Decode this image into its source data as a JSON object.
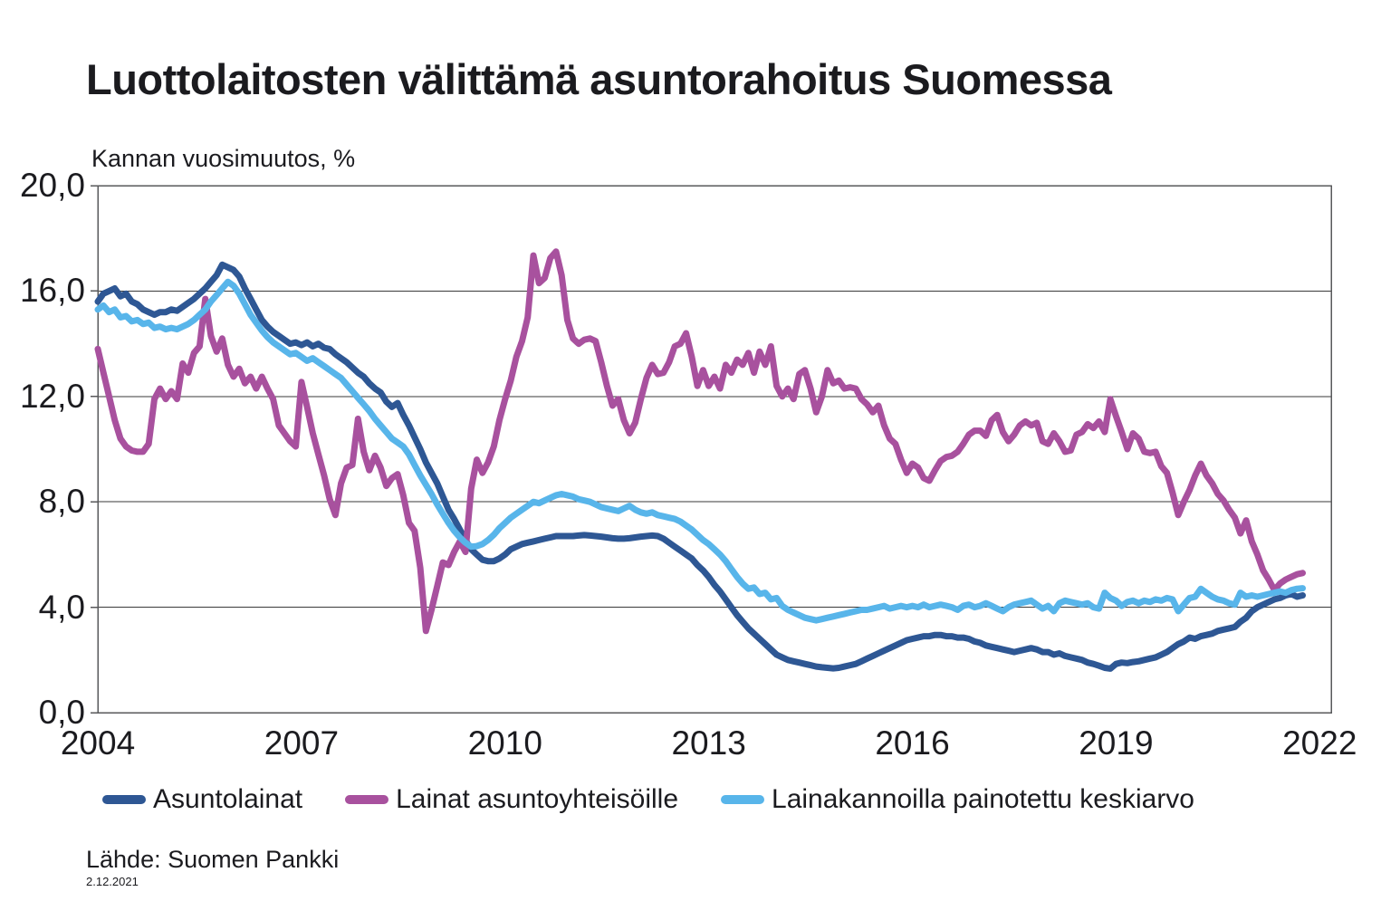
{
  "header": {
    "title": "Luottolaitosten välittämä asuntorahoitus Suomessa",
    "subtitle": "Kannan vuosimuutos, %"
  },
  "footer": {
    "source": "Lähde: Suomen Pankki",
    "date": "2.12.2021"
  },
  "colors": {
    "asuntolainat": "#2E5794",
    "asuntoyhteisot": "#A8519E",
    "keskiarvo": "#58B5EA",
    "grid": "#3a3a3a",
    "frame": "#58595b",
    "text": "#1b1b1f"
  },
  "chart_data": {
    "type": "line",
    "title": "Luottolaitosten välittämä asuntorahoitus Suomessa",
    "subtitle": "Kannan vuosimuutos, %",
    "xlabel": "",
    "ylabel": "Kannan vuosimuutos, %",
    "x_unit": "month",
    "x_start": "2004-01",
    "x_end": "2021-10",
    "frequency": "monthly",
    "start_year": 2004,
    "xlim": [
      2004,
      2022.17
    ],
    "ylim": [
      0,
      20
    ],
    "grid": "horizontal",
    "legend_position": "bottom",
    "ytick_values": [
      20,
      16,
      12,
      8,
      4,
      0
    ],
    "ytick_labels": [
      "20,0",
      "16,0",
      "12,0",
      "8,0",
      "4,0",
      "0,0"
    ],
    "xtick_values": [
      2004,
      2007,
      2010,
      2013,
      2016,
      2019,
      2022
    ],
    "xtick_labels": [
      "2004",
      "2007",
      "2010",
      "2013",
      "2016",
      "2019",
      "2022"
    ],
    "series": [
      {
        "name": "Asuntolainat",
        "color": "#2E5794",
        "values": [
          15.6,
          15.9,
          16.0,
          16.1,
          15.8,
          15.9,
          15.6,
          15.5,
          15.3,
          15.2,
          15.1,
          15.2,
          15.2,
          15.3,
          15.25,
          15.4,
          15.55,
          15.7,
          15.9,
          16.1,
          16.35,
          16.6,
          17.0,
          16.9,
          16.8,
          16.55,
          16.1,
          15.7,
          15.3,
          14.9,
          14.65,
          14.45,
          14.3,
          14.15,
          14.0,
          14.05,
          13.95,
          14.05,
          13.9,
          14.0,
          13.85,
          13.8,
          13.6,
          13.45,
          13.3,
          13.1,
          12.9,
          12.75,
          12.5,
          12.3,
          12.15,
          11.8,
          11.6,
          11.75,
          11.3,
          10.9,
          10.45,
          10.0,
          9.5,
          9.1,
          8.7,
          8.2,
          7.7,
          7.35,
          6.95,
          6.55,
          6.2,
          6.0,
          5.8,
          5.75,
          5.75,
          5.85,
          6.0,
          6.2,
          6.3,
          6.4,
          6.45,
          6.5,
          6.55,
          6.6,
          6.65,
          6.7,
          6.7,
          6.7,
          6.7,
          6.72,
          6.74,
          6.72,
          6.7,
          6.68,
          6.65,
          6.62,
          6.6,
          6.6,
          6.62,
          6.65,
          6.68,
          6.7,
          6.72,
          6.7,
          6.6,
          6.45,
          6.3,
          6.15,
          6.0,
          5.85,
          5.6,
          5.4,
          5.15,
          4.85,
          4.6,
          4.3,
          4.0,
          3.7,
          3.45,
          3.2,
          3.0,
          2.8,
          2.6,
          2.4,
          2.2,
          2.1,
          2.0,
          1.95,
          1.9,
          1.85,
          1.8,
          1.75,
          1.72,
          1.7,
          1.68,
          1.7,
          1.75,
          1.8,
          1.85,
          1.95,
          2.05,
          2.15,
          2.25,
          2.35,
          2.45,
          2.55,
          2.65,
          2.75,
          2.8,
          2.85,
          2.9,
          2.9,
          2.95,
          2.95,
          2.9,
          2.9,
          2.85,
          2.85,
          2.8,
          2.7,
          2.65,
          2.55,
          2.5,
          2.45,
          2.4,
          2.35,
          2.3,
          2.35,
          2.4,
          2.45,
          2.4,
          2.3,
          2.3,
          2.2,
          2.25,
          2.15,
          2.1,
          2.05,
          2.0,
          1.9,
          1.85,
          1.78,
          1.7,
          1.67,
          1.85,
          1.9,
          1.88,
          1.92,
          1.95,
          2.0,
          2.05,
          2.1,
          2.2,
          2.3,
          2.45,
          2.6,
          2.7,
          2.85,
          2.8,
          2.9,
          2.95,
          3.0,
          3.1,
          3.15,
          3.2,
          3.25,
          3.45,
          3.6,
          3.85,
          4.0,
          4.1,
          4.2,
          4.3,
          4.35,
          4.45,
          4.5,
          4.4,
          4.45
        ]
      },
      {
        "name": "Lainat asuntoyhteisöille",
        "color": "#A8519E",
        "values": [
          13.8,
          12.9,
          12.0,
          11.1,
          10.4,
          10.1,
          9.95,
          9.9,
          9.9,
          10.2,
          11.9,
          12.3,
          11.9,
          12.2,
          11.9,
          13.25,
          12.9,
          13.65,
          13.9,
          15.7,
          14.3,
          13.7,
          14.2,
          13.2,
          12.75,
          13.05,
          12.5,
          12.75,
          12.3,
          12.75,
          12.3,
          11.9,
          10.9,
          10.6,
          10.3,
          10.1,
          12.55,
          11.6,
          10.6,
          9.8,
          9.0,
          8.1,
          7.5,
          8.7,
          9.3,
          9.4,
          11.15,
          9.9,
          9.2,
          9.75,
          9.3,
          8.6,
          8.9,
          9.05,
          8.25,
          7.2,
          6.9,
          5.5,
          3.1,
          3.9,
          4.8,
          5.7,
          5.6,
          6.1,
          6.5,
          6.1,
          8.5,
          9.6,
          9.1,
          9.5,
          10.1,
          11.1,
          11.9,
          12.6,
          13.5,
          14.1,
          15.0,
          17.35,
          16.3,
          16.5,
          17.25,
          17.5,
          16.6,
          14.9,
          14.2,
          14.0,
          14.15,
          14.2,
          14.1,
          13.3,
          12.4,
          11.65,
          11.9,
          11.1,
          10.6,
          11.0,
          11.9,
          12.7,
          13.2,
          12.85,
          12.9,
          13.3,
          13.9,
          14.0,
          14.4,
          13.5,
          12.4,
          13.0,
          12.4,
          12.75,
          12.3,
          13.2,
          12.9,
          13.4,
          13.2,
          13.65,
          12.9,
          13.7,
          13.2,
          13.9,
          12.4,
          12.0,
          12.3,
          11.9,
          12.85,
          13.0,
          12.3,
          11.4,
          12.0,
          13.0,
          12.5,
          12.6,
          12.3,
          12.35,
          12.3,
          11.9,
          11.7,
          11.4,
          11.65,
          10.9,
          10.4,
          10.2,
          9.6,
          9.1,
          9.45,
          9.3,
          8.9,
          8.8,
          9.2,
          9.55,
          9.7,
          9.75,
          9.9,
          10.2,
          10.55,
          10.7,
          10.7,
          10.5,
          11.1,
          11.3,
          10.65,
          10.3,
          10.55,
          10.9,
          11.05,
          10.9,
          11.0,
          10.3,
          10.2,
          10.6,
          10.3,
          9.9,
          9.95,
          10.55,
          10.65,
          10.95,
          10.8,
          11.05,
          10.65,
          11.9,
          11.25,
          10.65,
          10.0,
          10.6,
          10.4,
          9.9,
          9.85,
          9.9,
          9.35,
          9.1,
          8.35,
          7.5,
          8.0,
          8.45,
          9.0,
          9.45,
          9.0,
          8.7,
          8.3,
          8.05,
          7.7,
          7.4,
          6.8,
          7.3,
          6.5,
          6.0,
          5.4,
          5.05,
          4.65,
          4.9,
          5.05,
          5.15,
          5.25,
          5.3
        ]
      },
      {
        "name": "Lainakannoilla painotettu keskiarvo",
        "color": "#58B5EA",
        "values": [
          15.3,
          15.45,
          15.2,
          15.3,
          15.0,
          15.05,
          14.85,
          14.9,
          14.75,
          14.8,
          14.6,
          14.65,
          14.55,
          14.6,
          14.55,
          14.65,
          14.75,
          14.9,
          15.1,
          15.3,
          15.6,
          15.85,
          16.1,
          16.35,
          16.2,
          15.9,
          15.5,
          15.1,
          14.8,
          14.5,
          14.25,
          14.05,
          13.9,
          13.75,
          13.6,
          13.65,
          13.5,
          13.35,
          13.45,
          13.3,
          13.15,
          13.0,
          12.85,
          12.7,
          12.45,
          12.2,
          11.95,
          11.7,
          11.45,
          11.15,
          10.9,
          10.65,
          10.4,
          10.25,
          10.1,
          9.8,
          9.4,
          9.0,
          8.65,
          8.3,
          7.9,
          7.55,
          7.2,
          6.9,
          6.65,
          6.45,
          6.3,
          6.32,
          6.4,
          6.55,
          6.75,
          7.0,
          7.2,
          7.4,
          7.55,
          7.7,
          7.85,
          8.0,
          7.95,
          8.05,
          8.15,
          8.25,
          8.3,
          8.25,
          8.2,
          8.1,
          8.05,
          8.0,
          7.9,
          7.8,
          7.75,
          7.7,
          7.65,
          7.75,
          7.85,
          7.7,
          7.6,
          7.55,
          7.6,
          7.5,
          7.45,
          7.4,
          7.35,
          7.25,
          7.1,
          6.95,
          6.75,
          6.55,
          6.4,
          6.2,
          6.0,
          5.75,
          5.45,
          5.15,
          4.9,
          4.7,
          4.75,
          4.5,
          4.55,
          4.3,
          4.35,
          4.05,
          3.9,
          3.8,
          3.7,
          3.6,
          3.55,
          3.5,
          3.55,
          3.6,
          3.65,
          3.7,
          3.75,
          3.8,
          3.85,
          3.9,
          3.9,
          3.95,
          4.0,
          4.05,
          3.95,
          4.0,
          4.05,
          4.0,
          4.05,
          4.0,
          4.1,
          4.0,
          4.05,
          4.1,
          4.05,
          4.0,
          3.9,
          4.05,
          4.1,
          4.0,
          4.05,
          4.15,
          4.05,
          3.95,
          3.85,
          4.0,
          4.1,
          4.15,
          4.2,
          4.25,
          4.1,
          3.95,
          4.05,
          3.85,
          4.15,
          4.25,
          4.2,
          4.15,
          4.1,
          4.15,
          4.0,
          3.95,
          4.55,
          4.35,
          4.25,
          4.05,
          4.2,
          4.25,
          4.15,
          4.25,
          4.2,
          4.3,
          4.25,
          4.35,
          4.3,
          3.85,
          4.1,
          4.35,
          4.4,
          4.7,
          4.55,
          4.4,
          4.3,
          4.25,
          4.15,
          4.1,
          4.55,
          4.4,
          4.45,
          4.4,
          4.45,
          4.5,
          4.55,
          4.6,
          4.55,
          4.65,
          4.7,
          4.72
        ]
      }
    ]
  }
}
